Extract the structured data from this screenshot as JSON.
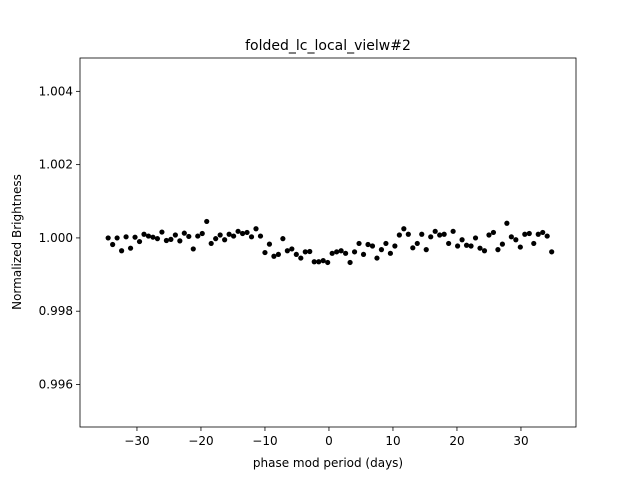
{
  "chart_data": {
    "type": "scatter",
    "title": "folded_lc_local_vielw#2",
    "xlabel": "phase mod period (days)",
    "ylabel": "Normalized Brightness",
    "color": "#000000",
    "grid": false,
    "xlim": [
      -38.9,
      38.6
    ],
    "ylim": [
      0.99484,
      1.00491
    ],
    "xticks": [
      {
        "value": -30,
        "label": "−30"
      },
      {
        "value": -20,
        "label": "−20"
      },
      {
        "value": -10,
        "label": "−10"
      },
      0,
      10,
      20,
      30
    ],
    "yticks": [
      0.996,
      0.998,
      {
        "value": 1,
        "label": "1.000"
      },
      1.002,
      1.004
    ],
    "x": [
      -34.5,
      -33.8,
      -33.1,
      -32.4,
      -31.7,
      -31.0,
      -30.3,
      -29.6,
      -28.9,
      -28.2,
      -27.5,
      -26.8,
      -26.1,
      -25.4,
      -24.7,
      -24.0,
      -23.3,
      -22.6,
      -21.9,
      -21.2,
      -20.5,
      -19.8,
      -19.1,
      -18.4,
      -17.7,
      -17.0,
      -16.3,
      -15.6,
      -14.9,
      -14.2,
      -13.5,
      -12.8,
      -12.1,
      -11.4,
      -10.7,
      -10.0,
      -9.3,
      -8.6,
      -7.9,
      -7.2,
      -6.5,
      -5.8,
      -5.1,
      -4.4,
      -3.7,
      -3.0,
      -2.3,
      -1.6,
      -0.9,
      -0.2,
      0.5,
      1.2,
      1.9,
      2.6,
      3.3,
      4.0,
      4.7,
      5.4,
      6.1,
      6.8,
      7.5,
      8.2,
      8.9,
      9.6,
      10.3,
      11.0,
      11.7,
      12.4,
      13.1,
      13.8,
      14.5,
      15.2,
      15.9,
      16.6,
      17.3,
      18.0,
      18.7,
      19.4,
      20.1,
      20.8,
      21.5,
      22.2,
      22.9,
      23.6,
      24.3,
      25.0,
      25.7,
      26.4,
      27.1,
      27.8,
      28.5,
      29.2,
      29.9,
      30.6,
      31.3,
      32.0,
      32.7,
      33.4,
      34.1,
      34.8
    ],
    "y": [
      1.0,
      0.99982,
      1.0,
      0.99965,
      1.00003,
      0.99972,
      1.00002,
      0.9999,
      1.0001,
      1.00005,
      1.00002,
      0.99998,
      1.00016,
      0.99993,
      0.99996,
      1.00008,
      0.99992,
      1.00013,
      1.00004,
      0.9997,
      1.00005,
      1.00012,
      1.00045,
      0.99985,
      0.99998,
      1.00008,
      0.99995,
      1.0001,
      1.00005,
      1.00018,
      1.00012,
      1.00015,
      1.00003,
      1.00025,
      1.00005,
      0.9996,
      0.99983,
      0.9995,
      0.99955,
      0.99998,
      0.99965,
      0.9997,
      0.99955,
      0.99945,
      0.99962,
      0.99963,
      0.99935,
      0.99935,
      0.99938,
      0.99933,
      0.99958,
      0.99962,
      0.99965,
      0.99958,
      0.99933,
      0.99962,
      0.99985,
      0.99955,
      0.99982,
      0.99978,
      0.99945,
      0.99968,
      0.99985,
      0.99958,
      0.99978,
      1.00008,
      1.00025,
      1.0001,
      0.99973,
      0.99985,
      1.0001,
      0.99968,
      1.00003,
      1.00018,
      1.00008,
      1.0001,
      0.99985,
      1.00018,
      0.99978,
      0.99995,
      0.9998,
      0.99978,
      1.0,
      0.99972,
      0.99965,
      1.00008,
      1.00015,
      0.99968,
      0.99983,
      1.0004,
      1.00003,
      0.99995,
      0.99975,
      1.0001,
      1.00012,
      0.99985,
      1.0001,
      1.00015,
      1.00005,
      0.99962
    ]
  }
}
